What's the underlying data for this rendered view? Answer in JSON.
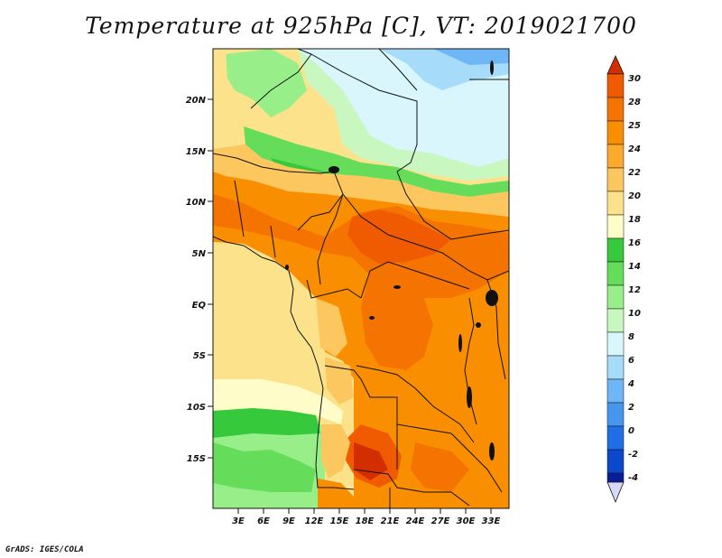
{
  "title": "Temperature at 925hPa [C], VT: 2019021700",
  "footer": "GrADS: IGES/COLA",
  "map": {
    "lat_labels": [
      "20N",
      "15N",
      "10N",
      "5N",
      "EQ",
      "5S",
      "10S",
      "15S"
    ],
    "lon_labels": [
      "3E",
      "6E",
      "9E",
      "12E",
      "15E",
      "18E",
      "21E",
      "24E",
      "27E",
      "30E",
      "33E"
    ]
  },
  "colorbar": {
    "levels": [
      "30",
      "28",
      "25",
      "24",
      "22",
      "20",
      "18",
      "16",
      "14",
      "12",
      "10",
      "8",
      "6",
      "4",
      "2",
      "0",
      "-2",
      "-4"
    ],
    "colors": [
      "#f05a00",
      "#f57300",
      "#f98f00",
      "#fbaa2d",
      "#fcc75f",
      "#fde28c",
      "#fefcc8",
      "#36c93c",
      "#65dc5a",
      "#98ee88",
      "#c8f8c0",
      "#d8f6fc",
      "#a6dcfa",
      "#6eb6f5",
      "#4695ee",
      "#1f6ee6",
      "#0b48cc",
      "#061f99",
      "#0a0a60"
    ],
    "top_arrow_color": "#d22e00",
    "bottom_arrow_color": "#d8d8f8"
  }
}
